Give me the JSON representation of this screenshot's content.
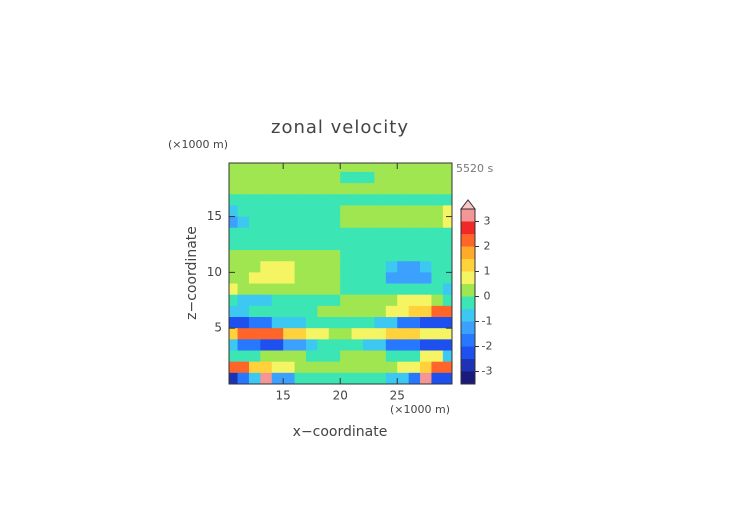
{
  "chart_data": {
    "type": "contour",
    "title": "zonal velocity",
    "time_label": "5520 s",
    "x_label": "x−coordinate",
    "y_label": "z−coordinate",
    "x_unit": "(×1000 m)",
    "y_unit": "(×1000 m)",
    "xlim": [
      10.25,
      29.8
    ],
    "ylim": [
      0,
      19.8
    ],
    "xticks": [
      15,
      20,
      25
    ],
    "yticks": [
      5,
      10,
      15
    ],
    "x": [
      10.5,
      11.5,
      12.5,
      13.5,
      14.5,
      15.5,
      16.5,
      17.5,
      18.5,
      19.5,
      20.5,
      21.5,
      22.5,
      23.5,
      24.5,
      25.5,
      26.5,
      27.5,
      28.5,
      29.5
    ],
    "y": [
      19.5,
      18.5,
      17.5,
      16.5,
      15.5,
      14.5,
      13.5,
      12.5,
      11.5,
      10.5,
      9.5,
      8.5,
      7.5,
      6.5,
      5.5,
      4.5,
      3.5,
      2.5,
      1.5,
      0.5
    ],
    "z": [
      [
        0.25,
        0.25,
        0.25,
        0.25,
        0.25,
        0.25,
        0.25,
        0.25,
        0.25,
        0.25,
        0.25,
        0.25,
        0.25,
        0.25,
        0.25,
        0.25,
        0.25,
        0.25,
        0.25,
        0.25
      ],
      [
        0.25,
        0.25,
        0.25,
        0.25,
        0.25,
        0.25,
        0.25,
        0.25,
        0.25,
        0.25,
        -0.25,
        -0.25,
        -0.25,
        0.25,
        0.25,
        0.25,
        0.25,
        0.25,
        0.25,
        0.25
      ],
      [
        0.25,
        0.25,
        0.25,
        0.25,
        0.25,
        0.25,
        0.25,
        0.25,
        0.25,
        0.25,
        0.25,
        0.25,
        0.25,
        0.25,
        0.25,
        0.25,
        0.25,
        0.25,
        0.25,
        0.25
      ],
      [
        -0.25,
        -0.25,
        -0.25,
        -0.25,
        -0.25,
        -0.25,
        -0.25,
        -0.25,
        -0.25,
        -0.25,
        -0.25,
        -0.25,
        -0.25,
        -0.25,
        -0.25,
        -0.25,
        -0.25,
        -0.25,
        -0.25,
        -0.25
      ],
      [
        -0.75,
        -0.25,
        -0.25,
        -0.25,
        -0.25,
        -0.25,
        -0.25,
        -0.25,
        -0.25,
        -0.25,
        0.25,
        0.25,
        0.25,
        0.25,
        0.25,
        0.25,
        0.25,
        0.25,
        0.25,
        0.75
      ],
      [
        -1.25,
        -0.75,
        -0.25,
        -0.25,
        -0.25,
        -0.25,
        -0.25,
        -0.25,
        -0.25,
        -0.25,
        0.25,
        0.25,
        0.25,
        0.25,
        0.25,
        0.25,
        0.25,
        0.25,
        0.25,
        0.75
      ],
      [
        -0.25,
        -0.25,
        -0.25,
        -0.25,
        -0.25,
        -0.25,
        -0.25,
        -0.25,
        -0.25,
        -0.25,
        -0.25,
        -0.25,
        -0.25,
        -0.25,
        -0.25,
        -0.25,
        -0.25,
        -0.25,
        -0.25,
        -0.25
      ],
      [
        -0.25,
        -0.25,
        -0.25,
        -0.25,
        -0.25,
        -0.25,
        -0.25,
        -0.25,
        -0.25,
        -0.25,
        -0.25,
        -0.25,
        -0.25,
        -0.25,
        -0.25,
        -0.25,
        -0.25,
        -0.25,
        -0.25,
        -0.25
      ],
      [
        0.25,
        0.25,
        0.25,
        0.25,
        0.25,
        0.25,
        0.25,
        0.25,
        0.25,
        0.25,
        -0.25,
        -0.25,
        -0.25,
        -0.25,
        -0.25,
        -0.25,
        -0.25,
        -0.25,
        -0.25,
        -0.25
      ],
      [
        0.25,
        0.25,
        0.25,
        0.75,
        0.75,
        0.75,
        0.25,
        0.25,
        0.25,
        0.25,
        -0.25,
        -0.25,
        -0.25,
        -0.25,
        -0.75,
        -1.25,
        -1.25,
        -0.75,
        -0.25,
        -0.25
      ],
      [
        0.25,
        0.25,
        0.75,
        0.75,
        0.75,
        0.75,
        0.25,
        0.25,
        0.25,
        0.25,
        -0.25,
        -0.25,
        -0.25,
        -0.25,
        -1.25,
        -1.25,
        -1.25,
        -1.25,
        -0.25,
        -0.25
      ],
      [
        0.75,
        0.25,
        0.25,
        0.25,
        0.25,
        0.25,
        0.25,
        0.25,
        0.25,
        0.25,
        -0.25,
        -0.25,
        -0.25,
        -0.25,
        -0.25,
        -0.25,
        -0.25,
        -0.25,
        -0.25,
        -0.75
      ],
      [
        -0.25,
        -0.75,
        -0.75,
        -0.75,
        -0.25,
        -0.25,
        -0.25,
        -0.25,
        -0.25,
        -0.25,
        0.25,
        0.25,
        0.25,
        0.25,
        0.25,
        0.75,
        0.75,
        0.75,
        0.25,
        -0.25
      ],
      [
        -0.75,
        -0.75,
        -0.25,
        -0.25,
        -0.25,
        -0.25,
        -0.25,
        -0.25,
        0.25,
        0.25,
        0.25,
        0.25,
        0.25,
        0.25,
        0.75,
        0.75,
        1.25,
        1.25,
        2.25,
        2.25
      ],
      [
        -2.25,
        -2.25,
        -1.75,
        -1.75,
        -0.75,
        -0.75,
        -0.75,
        -0.25,
        -0.25,
        -0.25,
        -0.25,
        -0.25,
        -0.25,
        -0.75,
        -0.75,
        -1.75,
        -1.75,
        -2.25,
        -2.25,
        -2.25
      ],
      [
        1.25,
        2.25,
        2.25,
        2.25,
        2.25,
        1.25,
        1.25,
        0.75,
        0.75,
        0.25,
        0.25,
        0.75,
        0.75,
        0.75,
        1.25,
        1.25,
        1.25,
        0.75,
        0.75,
        0.75
      ],
      [
        -0.75,
        -1.75,
        -1.75,
        -2.25,
        -2.25,
        -1.25,
        -1.25,
        -0.75,
        -0.25,
        -0.25,
        -0.25,
        -0.25,
        -0.75,
        -0.75,
        -1.75,
        -1.75,
        -1.75,
        -2.25,
        -2.25,
        -2.25
      ],
      [
        -0.25,
        -0.25,
        -0.25,
        0.25,
        0.25,
        0.25,
        0.25,
        -0.25,
        -0.25,
        -0.25,
        0.25,
        0.25,
        0.25,
        0.25,
        -0.25,
        -0.25,
        -0.25,
        0.75,
        0.75,
        -0.75
      ],
      [
        2.25,
        2.25,
        1.25,
        1.25,
        0.75,
        0.75,
        0.25,
        0.25,
        0.25,
        0.25,
        0.25,
        0.25,
        0.25,
        0.25,
        0.25,
        0.75,
        0.75,
        1.25,
        2.25,
        2.25
      ],
      [
        -2.75,
        -1.75,
        -0.75,
        3.25,
        -1.25,
        -1.25,
        -0.25,
        -0.25,
        -0.25,
        -0.25,
        -0.25,
        -0.25,
        -0.25,
        -0.25,
        -0.75,
        -0.75,
        -1.75,
        3.25,
        -2.25,
        -2.25
      ]
    ],
    "levels": [
      -3.5,
      -3,
      -2.5,
      -2,
      -1.5,
      -1,
      -0.5,
      0,
      0.5,
      1,
      1.5,
      2,
      2.5,
      3,
      3.5
    ],
    "colors": [
      "#1a1a7a",
      "#1e32b4",
      "#1e50f0",
      "#2878ff",
      "#3ca0ff",
      "#3cc8f0",
      "#3ce6b4",
      "#a0e650",
      "#f5f564",
      "#ffd23c",
      "#ffaa28",
      "#ff6428",
      "#f02828",
      "#f59696"
    ],
    "cticks": [
      -3,
      -2,
      -1,
      0,
      1,
      2,
      3
    ]
  }
}
